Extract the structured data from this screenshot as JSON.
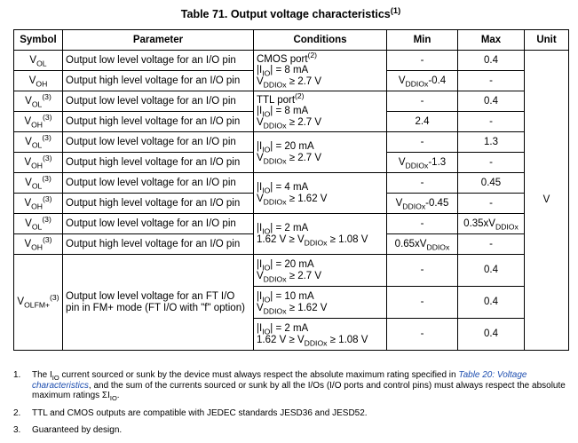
{
  "title": [
    {
      "text": "Table 71. Output voltage characteristics"
    },
    {
      "sup": "(1)"
    }
  ],
  "table": {
    "header": [
      "Symbol",
      "Parameter",
      "Conditions",
      "Min",
      "Max",
      "Unit"
    ],
    "unit": "V",
    "groups": [
      {
        "conditions": [
          [
            {
              "text": "CMOS port"
            },
            {
              "sup": "(2)"
            }
          ],
          [
            {
              "text": "|I"
            },
            {
              "sub": "IO"
            },
            {
              "text": "| = 8 mA"
            }
          ],
          [
            {
              "text": "V"
            },
            {
              "sub": "DDIOx"
            },
            {
              "text": " ≥ 2.7 V"
            }
          ]
        ],
        "rows": [
          {
            "symbol": [
              {
                "text": "V"
              },
              {
                "sub": "OL"
              }
            ],
            "parameter": "Output low level voltage for an I/O pin",
            "min": "-",
            "max": "0.4"
          },
          {
            "symbol": [
              {
                "text": "V"
              },
              {
                "sub": "OH"
              }
            ],
            "parameter": "Output high level voltage for an I/O pin",
            "min": [
              {
                "text": "V"
              },
              {
                "sub": "DDIOx"
              },
              {
                "text": "-0.4"
              }
            ],
            "max": "-"
          }
        ]
      },
      {
        "conditions": [
          [
            {
              "text": "TTL port"
            },
            {
              "sup": "(2)"
            }
          ],
          [
            {
              "text": "|I"
            },
            {
              "sub": "IO"
            },
            {
              "text": "| = 8 mA"
            }
          ],
          [
            {
              "text": "V"
            },
            {
              "sub": "DDIOx"
            },
            {
              "text": " ≥ 2.7 V"
            }
          ]
        ],
        "rows": [
          {
            "symbol": [
              {
                "text": "V"
              },
              {
                "sub": "OL"
              },
              {
                "sup": "(3)"
              }
            ],
            "parameter": "Output low level voltage for an I/O pin",
            "min": "-",
            "max": "0.4"
          },
          {
            "symbol": [
              {
                "text": "V"
              },
              {
                "sub": "OH"
              },
              {
                "sup": "(3)"
              }
            ],
            "parameter": "Output high level voltage for an I/O pin",
            "min": "2.4",
            "max": "-"
          }
        ]
      },
      {
        "conditions": [
          [
            {
              "text": "|I"
            },
            {
              "sub": "IO"
            },
            {
              "text": "| = 20 mA"
            }
          ],
          [
            {
              "text": "V"
            },
            {
              "sub": "DDIOx"
            },
            {
              "text": " ≥ 2.7 V"
            }
          ]
        ],
        "rows": [
          {
            "symbol": [
              {
                "text": "V"
              },
              {
                "sub": "OL"
              },
              {
                "sup": "(3)"
              }
            ],
            "parameter": "Output low level voltage for an I/O pin",
            "min": "-",
            "max": "1.3"
          },
          {
            "symbol": [
              {
                "text": "V"
              },
              {
                "sub": "OH"
              },
              {
                "sup": "(3)"
              }
            ],
            "parameter": "Output high level voltage for an I/O pin",
            "min": [
              {
                "text": "V"
              },
              {
                "sub": "DDIOx"
              },
              {
                "text": "-1.3"
              }
            ],
            "max": "-"
          }
        ]
      },
      {
        "conditions": [
          [
            {
              "text": "|I"
            },
            {
              "sub": "IO"
            },
            {
              "text": "| = 4 mA"
            }
          ],
          [
            {
              "text": "V"
            },
            {
              "sub": "DDIOx"
            },
            {
              "text": " ≥ 1.62 V"
            }
          ]
        ],
        "rows": [
          {
            "symbol": [
              {
                "text": "V"
              },
              {
                "sub": "OL"
              },
              {
                "sup": "(3)"
              }
            ],
            "parameter": "Output low level voltage for an I/O pin",
            "min": "-",
            "max": "0.45"
          },
          {
            "symbol": [
              {
                "text": "V"
              },
              {
                "sub": "OH"
              },
              {
                "sup": "(3)"
              }
            ],
            "parameter": "Output high level voltage for an I/O pin",
            "min": [
              {
                "text": "V"
              },
              {
                "sub": "DDIOx"
              },
              {
                "text": "-0.45"
              }
            ],
            "max": "-"
          }
        ]
      },
      {
        "conditions": [
          [
            {
              "text": "|I"
            },
            {
              "sub": "IO"
            },
            {
              "text": "| = 2 mA"
            }
          ],
          [
            {
              "text": "1.62 V ≥ V"
            },
            {
              "sub": "DDIOx"
            },
            {
              "text": " ≥ 1.08 V"
            }
          ]
        ],
        "rows": [
          {
            "symbol": [
              {
                "text": "V"
              },
              {
                "sub": "OL"
              },
              {
                "sup": "(3)"
              }
            ],
            "parameter": "Output low level voltage for an I/O pin",
            "min": "-",
            "max": [
              {
                "text": "0.35xV"
              },
              {
                "sub": "DDIOx"
              }
            ]
          },
          {
            "symbol": [
              {
                "text": "V"
              },
              {
                "sub": "OH"
              },
              {
                "sup": "(3)"
              }
            ],
            "parameter": "Output high level voltage for an I/O pin",
            "min": [
              {
                "text": "0.65xV"
              },
              {
                "sub": "DDIOx"
              }
            ],
            "max": "-"
          }
        ]
      },
      {
        "symbol": [
          {
            "text": "V"
          },
          {
            "sub": "OLFM+"
          },
          {
            "sup": "(3)"
          }
        ],
        "parameter": "Output low level voltage for an FT I/O pin in FM+ mode (FT I/O with \"f\" option)",
        "rows": [
          {
            "conditions": [
              [
                {
                  "text": "|I"
                },
                {
                  "sub": "IO"
                },
                {
                  "text": "| = 20 mA"
                }
              ],
              [
                {
                  "text": "V"
                },
                {
                  "sub": "DDIOx"
                },
                {
                  "text": " ≥ 2.7 V"
                }
              ]
            ],
            "min": "-",
            "max": "0.4"
          },
          {
            "conditions": [
              [
                {
                  "text": "|I"
                },
                {
                  "sub": "IO"
                },
                {
                  "text": "| = 10 mA"
                }
              ],
              [
                {
                  "text": "V"
                },
                {
                  "sub": "DDIOx"
                },
                {
                  "text": " ≥ 1.62 V"
                }
              ]
            ],
            "min": "-",
            "max": "0.4"
          },
          {
            "conditions": [
              [
                {
                  "text": "|I"
                },
                {
                  "sub": "IO"
                },
                {
                  "text": "| = 2 mA"
                }
              ],
              [
                {
                  "text": "1.62 V ≥ V"
                },
                {
                  "sub": "DDIOx"
                },
                {
                  "text": " ≥ 1.08 V"
                }
              ]
            ],
            "min": "-",
            "max": "0.4"
          }
        ]
      }
    ]
  },
  "notes": [
    {
      "number": "1.",
      "text": [
        {
          "text": "The I"
        },
        {
          "sub": "IO"
        },
        {
          "text": " current sourced or sunk by the device must always respect the absolute maximum rating specified in "
        },
        {
          "link": "Table 20: Voltage characteristics"
        },
        {
          "text": ", and the sum of the currents sourced or sunk by all the I/Os (I/O ports and control pins) must always respect the absolute maximum ratings ΣI"
        },
        {
          "sub": "IO"
        },
        {
          "text": "."
        }
      ]
    },
    {
      "number": "2.",
      "text": [
        {
          "text": "TTL and CMOS outputs are compatible with JEDEC standards JESD36 and JESD52."
        }
      ]
    },
    {
      "number": "3.",
      "text": [
        {
          "text": "Guaranteed by design."
        }
      ]
    }
  ]
}
